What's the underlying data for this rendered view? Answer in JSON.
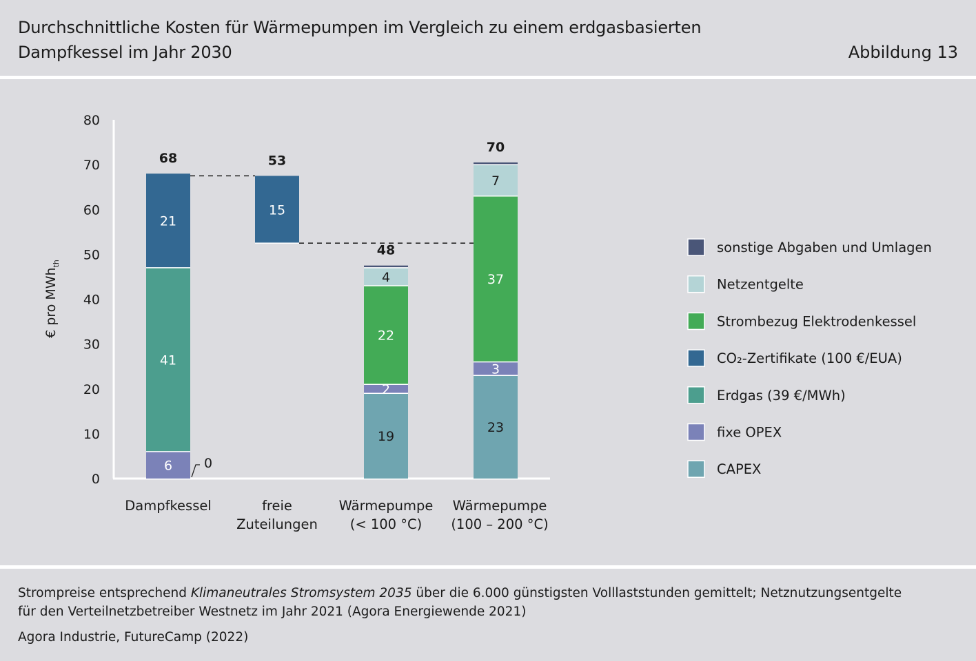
{
  "header": {
    "title_line1": "Durchschnittliche Kosten für Wärmepumpen im Vergleich zu einem erdgasbasierten",
    "title_line2": "Dampfkessel im Jahr 2030",
    "figure_number": "Abbildung 13"
  },
  "chart_data": {
    "type": "bar",
    "stacked": true,
    "waterfall": true,
    "ylabel": "€ pro MWh",
    "ylabel_subscript": "th",
    "ylim": [
      0,
      80
    ],
    "yticks": [
      0,
      10,
      20,
      30,
      40,
      50,
      60,
      70,
      80
    ],
    "grid": false,
    "legend_position": "right",
    "categories": [
      {
        "label_lines": [
          "Dampfkessel"
        ],
        "total": "68"
      },
      {
        "label_lines": [
          "freie",
          "Zuteilungen"
        ],
        "total": "53"
      },
      {
        "label_lines": [
          "Wärmepumpe",
          "(< 100 °C)"
        ],
        "total": "48"
      },
      {
        "label_lines": [
          "Wärmepumpe",
          "(100 – 200 °C)"
        ],
        "total": "70"
      }
    ],
    "series": [
      {
        "name": "CAPEX",
        "color": "#6fa5b0",
        "label_color": "#1b1b1b",
        "values": [
          null,
          null,
          19,
          23
        ]
      },
      {
        "name": "fixe OPEX",
        "color": "#7b82b8",
        "label_color": "#ffffff",
        "values": [
          6,
          null,
          2,
          3
        ]
      },
      {
        "name": "Erdgas (39 €/MWh)",
        "color": "#4c9e8e",
        "label_color": "#ffffff",
        "values": [
          41,
          null,
          null,
          null
        ]
      },
      {
        "name": "CO₂-Zertifikate (100 €/EUA)",
        "color": "#336892",
        "label_color": "#ffffff",
        "values": [
          21,
          null,
          null,
          null
        ]
      },
      {
        "name": "Strombezug Elektrodenkessel",
        "color": "#43ab56",
        "label_color": "#ffffff",
        "values": [
          null,
          null,
          22,
          37
        ]
      },
      {
        "name": "Netzentgelte",
        "color": "#b4d4d6",
        "label_color": "#1b1b1b",
        "values": [
          null,
          null,
          4,
          7
        ]
      },
      {
        "name": "sonstige Abgaben und Umlagen",
        "color": "#4a5678",
        "label_color": "#ffffff",
        "values": [
          null,
          null,
          0.5,
          0.5
        ]
      }
    ],
    "bar_labels": [
      [
        {
          "series": "fixe OPEX",
          "text": "6"
        },
        {
          "series": "Erdgas (39 €/MWh)",
          "text": "41"
        },
        {
          "series": "CO₂-Zertifikate (100 €/EUA)",
          "text": "21"
        }
      ],
      [
        {
          "series": "CO₂-Zertifikate (100 €/EUA)",
          "text": "15"
        }
      ],
      [
        {
          "series": "CAPEX",
          "text": "19"
        },
        {
          "series": "fixe OPEX",
          "text": "2"
        },
        {
          "series": "Strombezug Elektrodenkessel",
          "text": "22"
        },
        {
          "series": "Netzentgelte",
          "text": "4"
        }
      ],
      [
        {
          "series": "CAPEX",
          "text": "23"
        },
        {
          "series": "fixe OPEX",
          "text": "3"
        },
        {
          "series": "Strombezug Elektrodenkessel",
          "text": "37"
        },
        {
          "series": "Netzentgelte",
          "text": "7"
        }
      ]
    ],
    "waterfall_segment": {
      "category_index": 1,
      "series": "CO₂-Zertifikate (100 €/EUA)",
      "from": 52.5,
      "to": 67.5
    },
    "connectors": [
      {
        "from_category": 0,
        "to_category": 1,
        "y": 67.5
      },
      {
        "from_category": 1,
        "to_category": 3,
        "y": 52.5
      }
    ],
    "annotation": {
      "category_index": 0,
      "text": "0"
    },
    "legend_order": [
      "sonstige Abgaben und Umlagen",
      "Netzentgelte",
      "Strombezug Elektrodenkessel",
      "CO₂-Zertifikate (100 €/EUA)",
      "Erdgas (39 €/MWh)",
      "fixe OPEX",
      "CAPEX"
    ]
  },
  "footer": {
    "note_part1": "Strompreise entsprechend ",
    "note_italic": "Klimaneutrales Stromsystem 2035",
    "note_part2": " über die 6.000 günstigsten Volllaststunden gemittelt; Netznutzungsentgelte",
    "note_line2": "für den Verteilnetzbetreiber Westnetz im Jahr 2021 (Agora Energiewende 2021)",
    "source": "Agora Industrie, FutureCamp (2022)"
  }
}
